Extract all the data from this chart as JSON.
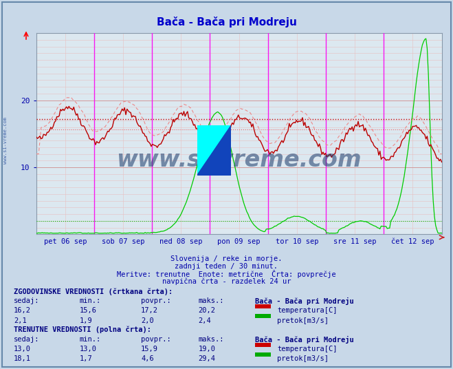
{
  "title": "Bača - Bača pri Modreju",
  "bg_color": "#c8d8e8",
  "plot_bg_color": "#dce8f0",
  "grid_color_minor": "#e8c8c8",
  "grid_color_major": "#e0b0b0",
  "magenta_color": "#ff00ff",
  "xtick_labels": [
    "pet 06 sep",
    "sob 07 sep",
    "ned 08 sep",
    "pon 09 sep",
    "tor 10 sep",
    "sre 11 sep",
    "čet 12 sep"
  ],
  "xtick_positions": [
    0.5,
    1.5,
    2.5,
    3.5,
    4.5,
    5.5,
    6.5
  ],
  "ylim": [
    0,
    30
  ],
  "xlim": [
    0,
    7
  ],
  "temp_avg_dashed": 17.2,
  "temp_min_dashed": 15.6,
  "flow_avg_dashed": 2.0,
  "subtitle_lines": [
    "Slovenija / reke in morje.",
    "zadnji teden / 30 minut.",
    "Meritve: trenutne  Enote: metrične  Črta: povprečje",
    "navpična črta - razdelek 24 ur"
  ],
  "temp_color_dark": "#bb0000",
  "temp_color_light": "#ee8888",
  "flow_color": "#00cc00",
  "watermark": "www.si-vreme.com",
  "watermark_color": "#1a3a6a",
  "border_color": "#6688aa",
  "text_color": "#000080",
  "label_color": "#0000aa",
  "hist_label": "ZGODOVINSKE VREDNOSTI (črtkana črta):",
  "curr_label": "TRENUTNE VREDNOSTI (polna črta):",
  "col_header": "  sedaj:    min.:     povpr.:    maks.:",
  "station_name": "Bača - Bača pri Modreju",
  "hist_temp": [
    "16,2",
    "15,6",
    "17,2",
    "20,2"
  ],
  "hist_flow": [
    "2,1",
    "1,9",
    "2,0",
    "2,4"
  ],
  "curr_temp": [
    "13,0",
    "13,0",
    "15,9",
    "19,0"
  ],
  "curr_flow": [
    "18,1",
    "1,7",
    "4,6",
    "29,4"
  ],
  "temp_box_color": "#cc0000",
  "flow_box_color": "#00aa00"
}
